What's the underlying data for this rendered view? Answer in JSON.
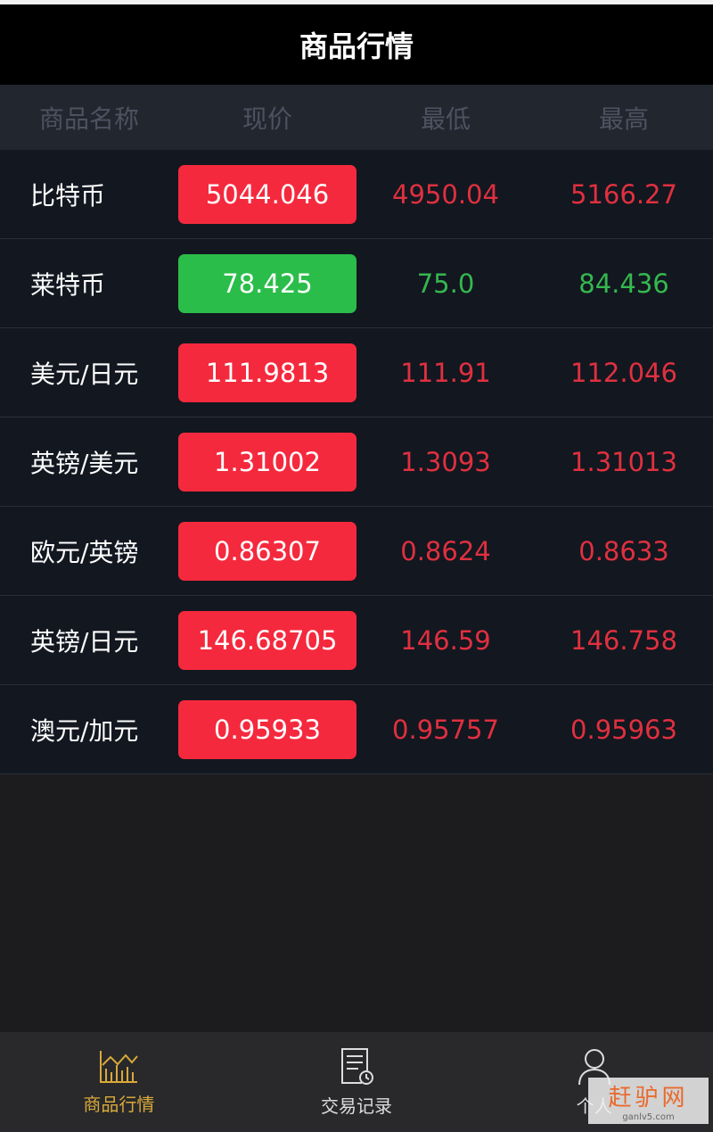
{
  "header": {
    "title": "商品行情"
  },
  "columns": [
    "商品名称",
    "现价",
    "最低",
    "最高"
  ],
  "colors": {
    "up": "#f5293d",
    "down": "#2bbd4a",
    "up_text": "#e0303f",
    "down_text": "#34b84f",
    "active_nav": "#d9a93a"
  },
  "rows": [
    {
      "name": "比特币",
      "price": "5044.046",
      "low": "4950.04",
      "high": "5166.27",
      "trend": "up"
    },
    {
      "name": "莱特币",
      "price": "78.425",
      "low": "75.0",
      "high": "84.436",
      "trend": "down"
    },
    {
      "name": "美元/日元",
      "price": "111.9813",
      "low": "111.91",
      "high": "112.046",
      "trend": "up"
    },
    {
      "name": "英镑/美元",
      "price": "1.31002",
      "low": "1.3093",
      "high": "1.31013",
      "trend": "up"
    },
    {
      "name": "欧元/英镑",
      "price": "0.86307",
      "low": "0.8624",
      "high": "0.8633",
      "trend": "up"
    },
    {
      "name": "英镑/日元",
      "price": "146.68705",
      "low": "146.59",
      "high": "146.758",
      "trend": "up"
    },
    {
      "name": "澳元/加元",
      "price": "0.95933",
      "low": "0.95757",
      "high": "0.95963",
      "trend": "up"
    }
  ],
  "nav": [
    {
      "label": "商品行情",
      "icon": "chart-icon",
      "active": true
    },
    {
      "label": "交易记录",
      "icon": "document-clock-icon",
      "active": false
    },
    {
      "label": "个人",
      "icon": "user-icon",
      "active": false
    }
  ],
  "watermark": {
    "title": "赶驴网",
    "url": "ganlv5.com"
  }
}
